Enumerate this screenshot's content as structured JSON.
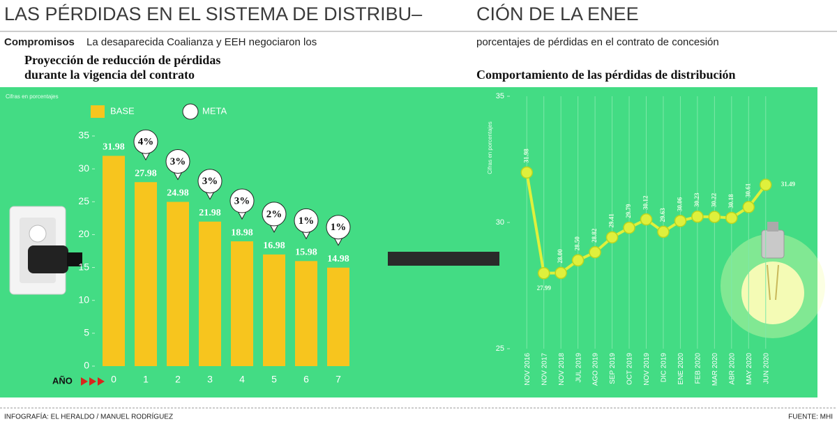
{
  "header": {
    "title": [
      "LAS PÉRDIDAS EN EL SISTEMA DE DISTRIBU–",
      "CIÓN DE LA ENEE"
    ],
    "lead_label": "Compromisos",
    "lead": [
      "La desaparecida Coalianza y EEH negociaron los",
      "porcentajes de pérdidas en el contrato de concesión"
    ]
  },
  "chart_data": [
    {
      "type": "bar",
      "title": [
        "Proyección de reducción de pérdidas",
        "durante la vigencia del contrato"
      ],
      "ylabel": "Cifras en porcentajes",
      "xlabel": "AÑO",
      "categories": [
        "0",
        "1",
        "2",
        "3",
        "4",
        "5",
        "6",
        "7"
      ],
      "series": [
        {
          "name": "BASE",
          "color": "#f7c51e",
          "values": [
            31.98,
            27.98,
            24.98,
            21.98,
            18.98,
            16.98,
            15.98,
            14.98
          ]
        },
        {
          "name": "META",
          "color": "#ffffff",
          "values": [
            null,
            4,
            3,
            3,
            3,
            2,
            1,
            1
          ],
          "value_labels": [
            null,
            "4%",
            "3%",
            "3%",
            "3%",
            "2%",
            "1%",
            "1%"
          ]
        }
      ],
      "ylim": [
        0,
        35
      ],
      "yticks": [
        0,
        5,
        10,
        15,
        20,
        25,
        30,
        35
      ],
      "grid": false
    },
    {
      "type": "line",
      "title": [
        "Comportamiento de las pérdidas de distribución"
      ],
      "ylabel": "Cifras en porcentajes",
      "categories": [
        "NOV 2016",
        "NOV 2017",
        "NOV 2018",
        "JUL 2019",
        "AGO 2019",
        "SEP 2019",
        "OCT 2019",
        "NOV 2019",
        "DIC 2019",
        "ENE 2020",
        "FEB 2020",
        "MAR 2020",
        "ABR 2020",
        "MAY 2020",
        "JUN 2020"
      ],
      "series": [
        {
          "color": "#dff03c",
          "values": [
            31.98,
            27.99,
            28.0,
            28.5,
            28.82,
            29.41,
            29.79,
            30.12,
            29.63,
            30.06,
            30.23,
            30.22,
            30.18,
            30.61,
            31.49
          ],
          "value_labels": [
            "31.98",
            "27.99",
            "28.00",
            "28.50",
            "28.82",
            "29.41",
            "29.79",
            "30.12",
            "29.63",
            "30.06",
            "30.23",
            "30.22",
            "30.18",
            "30.61",
            "31.49"
          ]
        }
      ],
      "ylim": [
        25,
        35
      ],
      "yticks": [
        25,
        30,
        35
      ],
      "grid": "x"
    }
  ],
  "footer": {
    "credit": "INFOGRAFÍA: EL HERALDO / MANUEL RODRÍGUEZ",
    "source": "FUENTE: MHI"
  }
}
